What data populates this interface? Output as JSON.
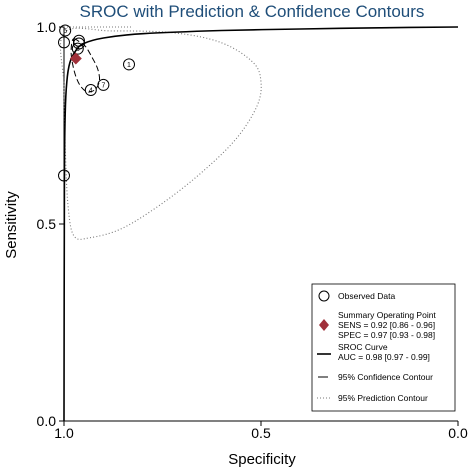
{
  "chart_data": {
    "type": "scatter",
    "title": "SROC with Prediction & Confidence Contours",
    "xlabel": "Specificity",
    "ylabel": "Sensitivity",
    "x_reversed": true,
    "xlim": [
      1.0,
      0.0
    ],
    "ylim": [
      0.0,
      1.0
    ],
    "x_ticks": [
      {
        "value": 1.0,
        "label": "1.0"
      },
      {
        "value": 0.5,
        "label": "0.5"
      },
      {
        "value": 0.0,
        "label": "0.0"
      }
    ],
    "y_ticks": [
      {
        "value": 0.0,
        "label": "0.0"
      },
      {
        "value": 0.5,
        "label": "0.5"
      },
      {
        "value": 1.0,
        "label": "1.0"
      }
    ],
    "observed_points": [
      {
        "label": "",
        "spec": 1.0,
        "sens": 0.623
      },
      {
        "label": "",
        "spec": 1.0,
        "sens": 0.961
      },
      {
        "label": "5",
        "spec": 0.997,
        "sens": 0.991
      },
      {
        "label": "",
        "spec": 0.962,
        "sens": 0.965
      },
      {
        "label": "",
        "spec": 0.962,
        "sens": 0.958
      },
      {
        "label": "6",
        "spec": 0.965,
        "sens": 0.945
      },
      {
        "label": "1",
        "spec": 0.835,
        "sens": 0.905
      },
      {
        "label": "7",
        "spec": 0.9,
        "sens": 0.853
      },
      {
        "label": "4",
        "spec": 0.932,
        "sens": 0.84
      }
    ],
    "summary_point": {
      "spec": 0.97,
      "sens": 0.92
    },
    "sroc_curve": [
      [
        1.0,
        0.0
      ],
      [
        0.999,
        0.6
      ],
      [
        0.997,
        0.78
      ],
      [
        0.993,
        0.86
      ],
      [
        0.985,
        0.91
      ],
      [
        0.97,
        0.94
      ],
      [
        0.95,
        0.958
      ],
      [
        0.9,
        0.972
      ],
      [
        0.8,
        0.983
      ],
      [
        0.6,
        0.991
      ],
      [
        0.4,
        0.995
      ],
      [
        0.2,
        0.998
      ],
      [
        0.0,
        1.0
      ]
    ],
    "confidence_contour": [
      [
        0.975,
        0.97
      ],
      [
        0.96,
        0.962
      ],
      [
        0.945,
        0.95
      ],
      [
        0.93,
        0.925
      ],
      [
        0.915,
        0.895
      ],
      [
        0.91,
        0.865
      ],
      [
        0.92,
        0.842
      ],
      [
        0.94,
        0.835
      ],
      [
        0.958,
        0.85
      ],
      [
        0.97,
        0.875
      ],
      [
        0.978,
        0.905
      ],
      [
        0.982,
        0.935
      ],
      [
        0.98,
        0.96
      ]
    ],
    "prediction_contour": [
      [
        1.0,
        0.985
      ],
      [
        0.88,
        0.99
      ],
      [
        0.72,
        0.985
      ],
      [
        0.6,
        0.96
      ],
      [
        0.52,
        0.91
      ],
      [
        0.5,
        0.86
      ],
      [
        0.51,
        0.8
      ],
      [
        0.56,
        0.72
      ],
      [
        0.64,
        0.64
      ],
      [
        0.74,
        0.56
      ],
      [
        0.85,
        0.49
      ],
      [
        0.935,
        0.465
      ],
      [
        0.975,
        0.47
      ],
      [
        0.99,
        0.55
      ],
      [
        0.997,
        0.7
      ],
      [
        1.0,
        0.85
      ]
    ],
    "legend_position": "bottom-right",
    "legend": {
      "observed": "Observed Data",
      "summary_title": "Summary Operating Point",
      "summary_sens": "SENS = 0.92 [0.86 - 0.96]",
      "summary_spec": "SPEC = 0.97 [0.93 - 0.98]",
      "sroc_title": "SROC Curve",
      "sroc_auc": "AUC = 0.98 [0.97 - 0.99]",
      "confidence": "95% Confidence Contour",
      "prediction": "95% Prediction Contour"
    },
    "colors": {
      "title": "#1f4e79",
      "summary_point": "#a0303a",
      "lines": "#000000",
      "prediction": "#777777"
    }
  }
}
